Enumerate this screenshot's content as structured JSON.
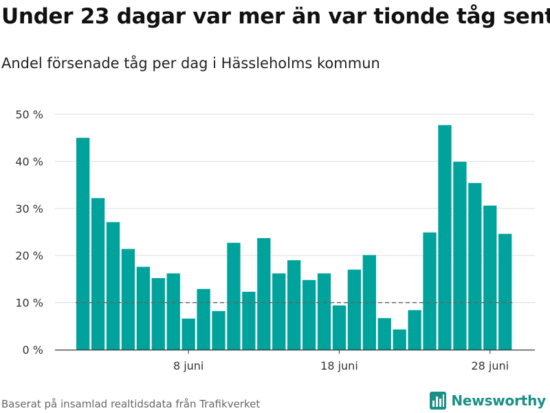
{
  "title": "Under 23 dagar var mer än var tionde tåg sent",
  "subtitle": "Andel försenade tåg per dag i Hässleholms kommun",
  "source": "Baserat på insamlad realtidsdata från Trafikverket",
  "brand": "Newsworthy",
  "colors": {
    "bar": "#00a39b",
    "reference_line": "#666666",
    "grid": "#dddddd",
    "brand": "#1a8f87"
  },
  "chart_data": {
    "type": "bar",
    "title": "Under 23 dagar var mer än var tionde tåg sent",
    "subtitle": "Andel försenade tåg per dag i Hässleholms kommun",
    "xlabel": "",
    "ylabel": "",
    "ylim": [
      0,
      50
    ],
    "yticks": [
      {
        "value": 0,
        "label": "0 %"
      },
      {
        "value": 10,
        "label": "10 %"
      },
      {
        "value": 20,
        "label": "20 %"
      },
      {
        "value": 30,
        "label": "30 %"
      },
      {
        "value": 40,
        "label": "40 %"
      },
      {
        "value": 50,
        "label": "50 %"
      }
    ],
    "xticks": [
      {
        "day": 8,
        "label": "8 juni"
      },
      {
        "day": 18,
        "label": "18 juni"
      },
      {
        "day": 28,
        "label": "28 juni"
      }
    ],
    "reference_line": {
      "value": 10,
      "style": "dashed"
    },
    "grid": true,
    "legend": "none",
    "days": [
      1,
      2,
      3,
      4,
      5,
      6,
      7,
      8,
      9,
      10,
      11,
      12,
      13,
      14,
      15,
      16,
      17,
      18,
      19,
      20,
      21,
      22,
      23,
      24,
      25,
      26,
      27,
      28,
      29
    ],
    "values": [
      45,
      32.2,
      27.1,
      21.4,
      17.6,
      15.2,
      16.2,
      6.6,
      12.9,
      8.2,
      22.7,
      12.3,
      23.7,
      16.2,
      19,
      14.8,
      16.2,
      9.4,
      17,
      20.1,
      6.7,
      4.3,
      8.4,
      24.9,
      47.7,
      39.9,
      35.4,
      30.6,
      24.6
    ]
  }
}
